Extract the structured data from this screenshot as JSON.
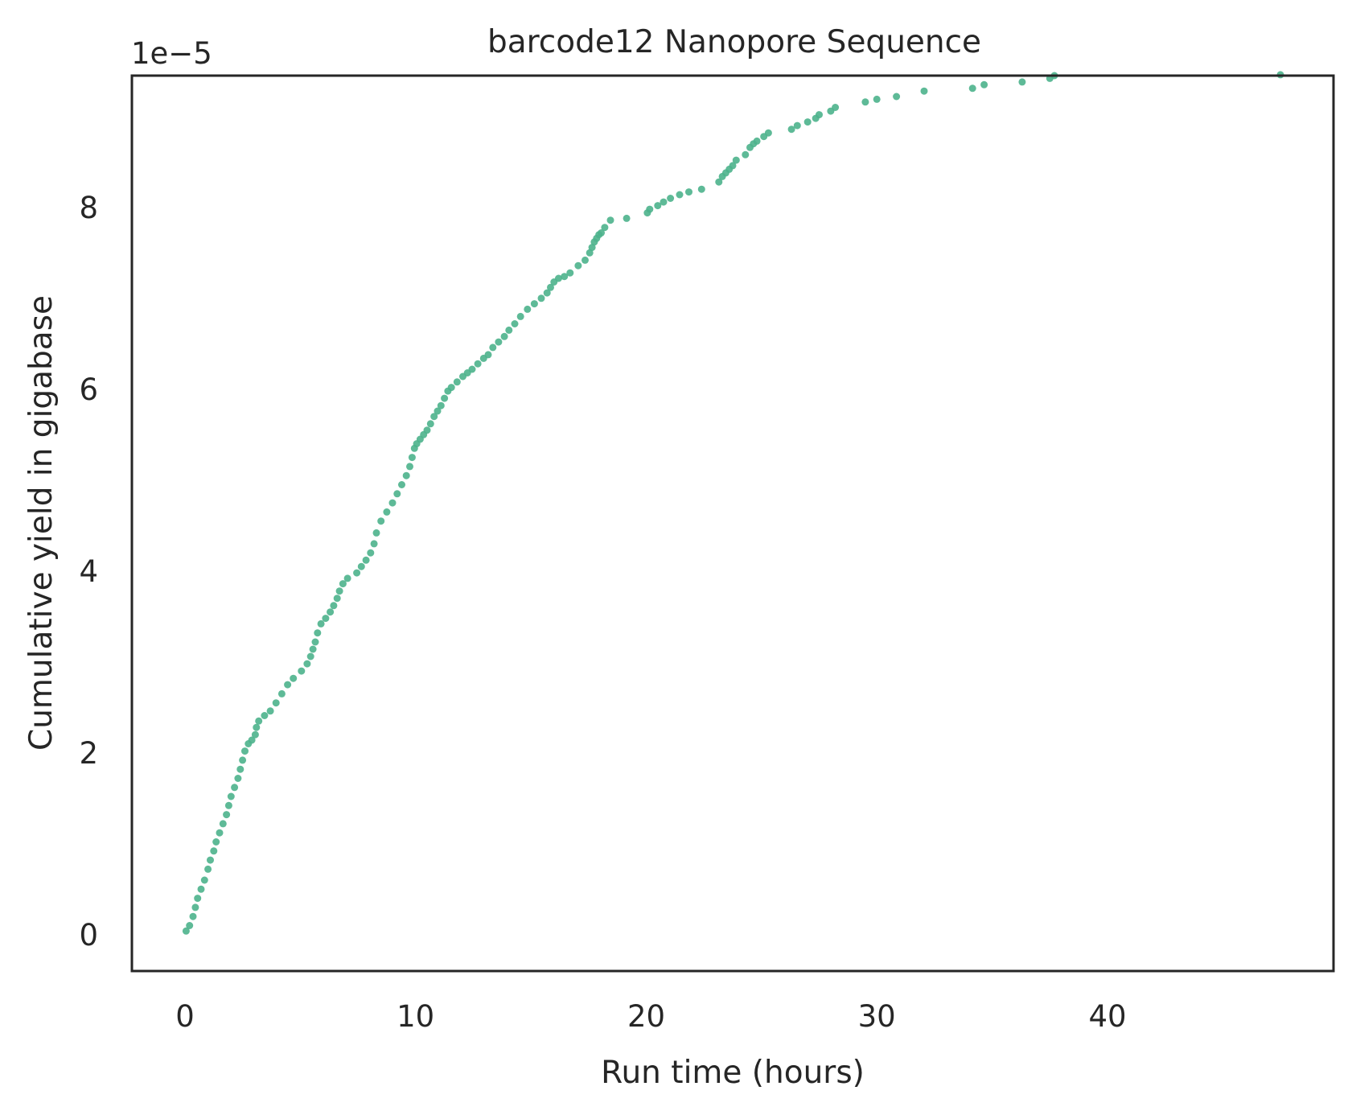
{
  "chart_data": {
    "type": "scatter",
    "title": "barcode12 Nanopore Sequence",
    "xlabel": "Run time (hours)",
    "ylabel": "Cumulative yield in gigabase",
    "y_offset_label": "1e−5",
    "y_scale_factor": 1e-05,
    "xlim": [
      -2.3,
      49.8
    ],
    "ylim": [
      -0.4,
      9.45
    ],
    "xticks": [
      0,
      10,
      20,
      30,
      40
    ],
    "xtick_labels": [
      "0",
      "10",
      "20",
      "30",
      "40"
    ],
    "yticks": [
      0,
      2,
      4,
      6,
      8
    ],
    "ytick_labels": [
      "0",
      "2",
      "4",
      "6",
      "8"
    ],
    "grid": false,
    "marker_color": "#4db38c",
    "axes_color": "#262626",
    "series": [
      {
        "x": [
          0.05,
          0.2,
          0.35,
          0.45,
          0.55,
          0.7,
          0.85,
          1.0,
          1.1,
          1.25,
          1.35,
          1.5,
          1.65,
          1.8,
          1.9,
          2.0,
          2.15,
          2.3,
          2.4,
          2.5,
          2.6,
          2.75,
          2.9,
          3.05,
          3.1,
          3.2,
          3.45,
          3.7,
          3.95,
          4.2,
          4.45,
          4.7,
          5.05,
          5.3,
          5.45,
          5.55,
          5.65,
          5.75,
          5.9,
          6.1,
          6.3,
          6.45,
          6.6,
          6.7,
          6.85,
          7.05,
          7.45,
          7.65,
          7.85,
          8.05,
          8.2,
          8.3,
          8.5,
          8.75,
          9.0,
          9.2,
          9.4,
          9.6,
          9.75,
          9.85,
          9.95,
          10.05,
          10.2,
          10.35,
          10.5,
          10.65,
          10.8,
          10.95,
          11.1,
          11.25,
          11.4,
          11.55,
          11.8,
          12.05,
          12.25,
          12.45,
          12.7,
          12.95,
          13.15,
          13.35,
          13.6,
          13.85,
          14.05,
          14.3,
          14.55,
          14.85,
          15.15,
          15.45,
          15.7,
          15.85,
          16.0,
          16.2,
          16.45,
          16.7,
          17.05,
          17.35,
          17.55,
          17.65,
          17.75,
          17.85,
          17.95,
          18.05,
          18.2,
          18.45,
          19.15,
          20.05,
          20.15,
          20.5,
          20.75,
          21.05,
          21.45,
          21.85,
          22.4,
          23.15,
          23.3,
          23.45,
          23.6,
          23.75,
          23.9,
          24.3,
          24.5,
          24.65,
          24.8,
          25.1,
          25.3,
          26.3,
          26.55,
          27.0,
          27.35,
          27.5,
          28.0,
          28.2,
          29.5,
          30.0,
          30.85,
          32.05,
          34.15,
          34.65,
          36.3,
          37.5,
          37.7,
          47.5
        ],
        "y": [
          0.04,
          0.1,
          0.2,
          0.3,
          0.4,
          0.5,
          0.6,
          0.72,
          0.82,
          0.92,
          1.02,
          1.12,
          1.22,
          1.32,
          1.42,
          1.52,
          1.62,
          1.72,
          1.82,
          1.92,
          2.02,
          2.1,
          2.14,
          2.2,
          2.28,
          2.35,
          2.41,
          2.46,
          2.55,
          2.65,
          2.75,
          2.82,
          2.9,
          2.98,
          3.06,
          3.14,
          3.22,
          3.32,
          3.42,
          3.48,
          3.55,
          3.62,
          3.7,
          3.78,
          3.86,
          3.92,
          3.98,
          4.05,
          4.12,
          4.2,
          4.3,
          4.42,
          4.55,
          4.65,
          4.75,
          4.85,
          4.95,
          5.05,
          5.15,
          5.25,
          5.35,
          5.4,
          5.45,
          5.5,
          5.55,
          5.62,
          5.7,
          5.76,
          5.82,
          5.9,
          5.98,
          6.02,
          6.08,
          6.14,
          6.18,
          6.22,
          6.28,
          6.34,
          6.38,
          6.46,
          6.52,
          6.58,
          6.65,
          6.72,
          6.8,
          6.88,
          6.94,
          7.0,
          7.06,
          7.12,
          7.18,
          7.22,
          7.24,
          7.28,
          7.36,
          7.42,
          7.5,
          7.56,
          7.62,
          7.66,
          7.7,
          7.72,
          7.78,
          7.86,
          7.88,
          7.94,
          7.98,
          8.02,
          8.06,
          8.1,
          8.14,
          8.17,
          8.2,
          8.28,
          8.34,
          8.38,
          8.42,
          8.46,
          8.52,
          8.58,
          8.66,
          8.7,
          8.73,
          8.78,
          8.82,
          8.86,
          8.9,
          8.94,
          8.98,
          9.02,
          9.06,
          9.1,
          9.16,
          9.19,
          9.22,
          9.28,
          9.31,
          9.35,
          9.38,
          9.42,
          9.45,
          9.46
        ]
      }
    ]
  }
}
